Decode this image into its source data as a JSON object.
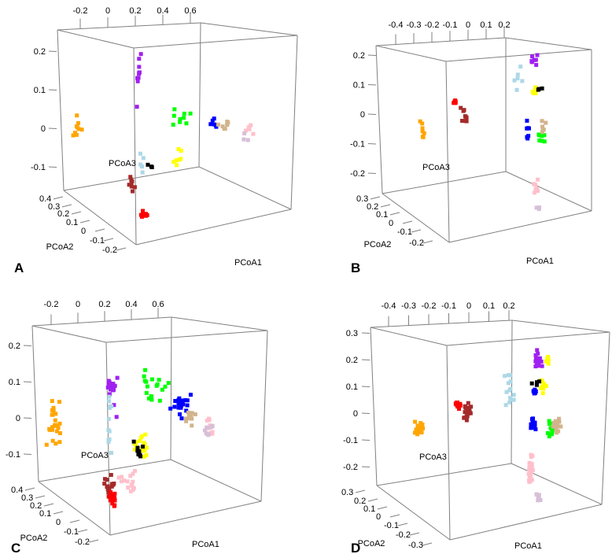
{
  "colors": {
    "orange": "#FFA500",
    "purple": "#A020F0",
    "green": "#00FF00",
    "blue": "#0000FF",
    "tan": "#D2B48C",
    "pink": "#FFC0CB",
    "thistle": "#D8BFD8",
    "yellow": "#FFFF00",
    "black": "#000000",
    "lightblue": "#ADD8E6",
    "brown": "#A52A2A",
    "red": "#FF0000",
    "box": "#808080"
  },
  "chart_data": [
    {
      "type": "scatter",
      "panel": "A",
      "xlabel": "PCoA1",
      "ylabel": "PCoA2",
      "zlabel": "PCoA3",
      "x_ticks": [
        "-0.2",
        "0",
        "0.2",
        "0.4",
        "0.6"
      ],
      "x_tick_values": [
        -0.2,
        0,
        0.2,
        0.4,
        0.6
      ],
      "z_ticks": [
        "0.2",
        "0.1",
        "0",
        "-0.1"
      ],
      "z_tick_values": [
        0.2,
        0.1,
        0,
        -0.1
      ],
      "y_ticks": [
        "0.4",
        "0.3",
        "0.2",
        "0.1",
        "0",
        "-0.1",
        "-0.2"
      ],
      "clusters": [
        {
          "color": "orange",
          "n": 9,
          "pc1": -0.23,
          "pc3": -0.005,
          "s1": 0.06,
          "s3": 0.045
        },
        {
          "color": "purple",
          "n": 10,
          "pc1": 0.23,
          "pc3": 0.13,
          "s1": 0.04,
          "s3": 0.08
        },
        {
          "color": "green",
          "n": 9,
          "pc1": 0.54,
          "pc3": 0.027,
          "s1": 0.12,
          "s3": 0.02
        },
        {
          "color": "blue",
          "n": 6,
          "pc1": 0.77,
          "pc3": 0.016,
          "s1": 0.04,
          "s3": 0.03
        },
        {
          "color": "tan",
          "n": 8,
          "pc1": 0.85,
          "pc3": 0.0,
          "s1": 0.05,
          "s3": 0.02
        },
        {
          "color": "pink",
          "n": 6,
          "pc1": 1.02,
          "pc3": 0.006,
          "s1": 0.04,
          "s3": 0.02
        },
        {
          "color": "thistle",
          "n": 3,
          "pc1": 1.0,
          "pc3": -0.035,
          "s1": 0.03,
          "s3": 0.02
        },
        {
          "color": "yellow",
          "n": 7,
          "pc1": 0.49,
          "pc3": -0.075,
          "s1": 0.05,
          "s3": 0.02
        },
        {
          "color": "black",
          "n": 3,
          "pc1": 0.3,
          "pc3": -0.086,
          "s1": 0.05,
          "s3": 0.015
        },
        {
          "color": "lightblue",
          "n": 5,
          "pc1": 0.26,
          "pc3": -0.086,
          "s1": 0.02,
          "s3": 0.03
        },
        {
          "color": "brown",
          "n": 8,
          "pc1": 0.17,
          "pc3": -0.15,
          "s1": 0.02,
          "s3": 0.04
        },
        {
          "color": "red",
          "n": 8,
          "pc1": 0.26,
          "pc3": -0.22,
          "s1": 0.03,
          "s3": 0.015
        }
      ]
    },
    {
      "type": "scatter",
      "panel": "B",
      "xlabel": "PCoA1",
      "ylabel": "PCoA2",
      "zlabel": "PCoA3",
      "x_ticks": [
        "-0.4",
        "-0.3",
        "-0.2",
        "-0.1",
        "0",
        "0.1",
        "0.2"
      ],
      "x_tick_values": [
        -0.4,
        -0.3,
        -0.2,
        -0.1,
        0,
        0.1,
        0.2
      ],
      "z_ticks": [
        "0.2",
        "0.1",
        "0",
        "-0.1",
        "-0.2"
      ],
      "z_tick_values": [
        0.2,
        0.1,
        0,
        -0.1,
        -0.2
      ],
      "y_ticks": [
        "0.3",
        "0.2",
        "0.1",
        "0",
        "-0.1",
        "-0.2"
      ],
      "clusters": [
        {
          "color": "orange",
          "n": 7,
          "pc1": -0.25,
          "pc3": -0.053,
          "s1": 0.015,
          "s3": 0.03
        },
        {
          "color": "red",
          "n": 8,
          "pc1": -0.07,
          "pc3": 0.037,
          "s1": 0.01,
          "s3": 0.01
        },
        {
          "color": "brown",
          "n": 9,
          "pc1": -0.02,
          "pc3": -0.027,
          "s1": 0.03,
          "s3": 0.04
        },
        {
          "color": "lightblue",
          "n": 6,
          "pc1": 0.27,
          "pc3": 0.13,
          "s1": 0.03,
          "s3": 0.04
        },
        {
          "color": "purple",
          "n": 8,
          "pc1": 0.36,
          "pc3": 0.187,
          "s1": 0.02,
          "s3": 0.02
        },
        {
          "color": "yellow",
          "n": 6,
          "pc1": 0.37,
          "pc3": 0.08,
          "s1": 0.015,
          "s3": 0.02
        },
        {
          "color": "black",
          "n": 3,
          "pc1": 0.4,
          "pc3": 0.083,
          "s1": 0.02,
          "s3": 0.005
        },
        {
          "color": "blue",
          "n": 7,
          "pc1": 0.33,
          "pc3": -0.04,
          "s1": 0.01,
          "s3": 0.03
        },
        {
          "color": "green",
          "n": 8,
          "pc1": 0.4,
          "pc3": -0.072,
          "s1": 0.02,
          "s3": 0.025
        },
        {
          "color": "tan",
          "n": 6,
          "pc1": 0.42,
          "pc3": -0.04,
          "s1": 0.02,
          "s3": 0.02
        },
        {
          "color": "pink",
          "n": 7,
          "pc1": 0.37,
          "pc3": -0.25,
          "s1": 0.015,
          "s3": 0.03
        },
        {
          "color": "thistle",
          "n": 3,
          "pc1": 0.39,
          "pc3": -0.32,
          "s1": 0.01,
          "s3": 0.01
        }
      ]
    },
    {
      "type": "scatter",
      "panel": "C",
      "xlabel": "PCoA1",
      "ylabel": "PCoA2",
      "zlabel": "PCoA3",
      "x_ticks": [
        "-0.2",
        "0",
        "0.2",
        "0.4",
        "0.6"
      ],
      "x_tick_values": [
        -0.2,
        0,
        0.2,
        0.4,
        0.6
      ],
      "z_ticks": [
        "0.2",
        "0.1",
        "0",
        "-0.1"
      ],
      "z_tick_values": [
        0.2,
        0.1,
        0,
        -0.1
      ],
      "y_ticks": [
        "0.4",
        "0.3",
        "0.2",
        "0.1",
        "0",
        "-0.1",
        "-0.2"
      ],
      "clusters": [
        {
          "color": "orange",
          "n": 25,
          "pc1": -0.18,
          "pc3": -0.01,
          "s1": 0.06,
          "s3": 0.07
        },
        {
          "color": "purple",
          "n": 18,
          "pc1": 0.26,
          "pc3": 0.08,
          "s1": 0.04,
          "s3": 0.06
        },
        {
          "color": "lightblue",
          "n": 12,
          "pc1": 0.24,
          "pc3": 0.0,
          "s1": 0.02,
          "s3": 0.08
        },
        {
          "color": "green",
          "n": 18,
          "pc1": 0.56,
          "pc3": 0.08,
          "s1": 0.1,
          "s3": 0.06
        },
        {
          "color": "blue",
          "n": 20,
          "pc1": 0.77,
          "pc3": 0.035,
          "s1": 0.06,
          "s3": 0.04
        },
        {
          "color": "tan",
          "n": 12,
          "pc1": 0.85,
          "pc3": 0.0,
          "s1": 0.04,
          "s3": 0.02
        },
        {
          "color": "pink",
          "n": 10,
          "pc1": 0.98,
          "pc3": -0.02,
          "s1": 0.03,
          "s3": 0.03
        },
        {
          "color": "thistle",
          "n": 8,
          "pc1": 0.98,
          "pc3": -0.04,
          "s1": 0.03,
          "s3": 0.03
        },
        {
          "color": "yellow",
          "n": 18,
          "pc1": 0.48,
          "pc3": -0.075,
          "s1": 0.06,
          "s3": 0.03
        },
        {
          "color": "black",
          "n": 8,
          "pc1": 0.43,
          "pc3": -0.085,
          "s1": 0.06,
          "s3": 0.03
        },
        {
          "color": "pink",
          "n": 15,
          "pc1": 0.39,
          "pc3": -0.18,
          "s1": 0.07,
          "s3": 0.03
        },
        {
          "color": "brown",
          "n": 18,
          "pc1": 0.24,
          "pc3": -0.19,
          "s1": 0.04,
          "s3": 0.03
        },
        {
          "color": "red",
          "n": 25,
          "pc1": 0.26,
          "pc3": -0.225,
          "s1": 0.02,
          "s3": 0.015
        }
      ]
    },
    {
      "type": "scatter",
      "panel": "D",
      "xlabel": "PCoA1",
      "ylabel": "PCoA2",
      "zlabel": "PCoA3",
      "x_ticks": [
        "-0.4",
        "-0.3",
        "-0.2",
        "-0.1",
        "0",
        "0.1",
        "0.2"
      ],
      "x_tick_values": [
        -0.4,
        -0.3,
        -0.2,
        -0.1,
        0,
        0.1,
        0.2
      ],
      "z_ticks": [
        "0.3",
        "0.2",
        "0.1",
        "0",
        "-0.1",
        "-0.2"
      ],
      "z_tick_values": [
        0.3,
        0.2,
        0.1,
        0,
        -0.1,
        -0.2
      ],
      "y_ticks": [
        "0.3",
        "0.2",
        "0.1",
        "0",
        "-0.1",
        "-0.2",
        "-0.3"
      ],
      "clusters": [
        {
          "color": "orange",
          "n": 20,
          "pc1": -0.25,
          "pc3": -0.06,
          "s1": 0.025,
          "s3": 0.03
        },
        {
          "color": "red",
          "n": 15,
          "pc1": -0.055,
          "pc3": 0.03,
          "s1": 0.015,
          "s3": 0.015
        },
        {
          "color": "brown",
          "n": 18,
          "pc1": -0.01,
          "pc3": 0.0,
          "s1": 0.02,
          "s3": 0.035
        },
        {
          "color": "lightblue",
          "n": 15,
          "pc1": 0.2,
          "pc3": 0.075,
          "s1": 0.03,
          "s3": 0.06
        },
        {
          "color": "purple",
          "n": 18,
          "pc1": 0.34,
          "pc3": 0.2,
          "s1": 0.02,
          "s3": 0.04
        },
        {
          "color": "yellow",
          "n": 12,
          "pc1": 0.37,
          "pc3": 0.095,
          "s1": 0.015,
          "s3": 0.025
        },
        {
          "color": "yellow",
          "n": 6,
          "pc1": 0.39,
          "pc3": 0.2,
          "s1": 0.01,
          "s3": 0.02
        },
        {
          "color": "blue",
          "n": 8,
          "pc1": 0.33,
          "pc3": 0.085,
          "s1": 0.01,
          "s3": 0.015
        },
        {
          "color": "black",
          "n": 4,
          "pc1": 0.34,
          "pc3": 0.09,
          "s1": 0.03,
          "s3": 0.05
        },
        {
          "color": "blue",
          "n": 14,
          "pc1": 0.32,
          "pc3": -0.04,
          "s1": 0.015,
          "s3": 0.025
        },
        {
          "color": "green",
          "n": 12,
          "pc1": 0.41,
          "pc3": -0.06,
          "s1": 0.02,
          "s3": 0.03
        },
        {
          "color": "tan",
          "n": 18,
          "pc1": 0.44,
          "pc3": -0.045,
          "s1": 0.02,
          "s3": 0.03
        },
        {
          "color": "pink",
          "n": 25,
          "pc1": 0.31,
          "pc3": -0.22,
          "s1": 0.015,
          "s3": 0.06
        },
        {
          "color": "thistle",
          "n": 9,
          "pc1": 0.35,
          "pc3": -0.32,
          "s1": 0.01,
          "s3": 0.02
        }
      ]
    }
  ]
}
